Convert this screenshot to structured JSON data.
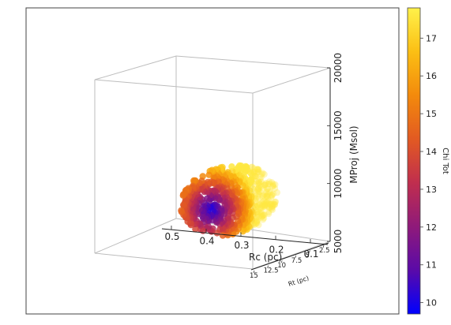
{
  "chart_data": {
    "type": "scatter3d",
    "title": "",
    "axes": {
      "x": {
        "label": "Rc (pc)",
        "ticks": [
          "0.5",
          "0.4",
          "0.3",
          "0.2",
          "0.1"
        ],
        "range": [
          0.05,
          0.55
        ]
      },
      "y": {
        "label": "Rt (pc)",
        "ticks": [
          "15",
          "12.5",
          "10",
          "7.5",
          "5",
          "2.5"
        ],
        "range": [
          2.5,
          15
        ]
      },
      "z": {
        "label": "MProj (Msol)",
        "ticks": [
          "5000",
          "10000",
          "15000",
          "20000"
        ],
        "range": [
          5000,
          20000
        ]
      }
    },
    "colorbar": {
      "label": "Chi Tot",
      "range": [
        9.7,
        17.8
      ],
      "ticks": [
        "10",
        "11",
        "12",
        "13",
        "14",
        "15",
        "16",
        "17"
      ],
      "colormap": [
        "#0000ff",
        "#5a0aa8",
        "#8f1a7a",
        "#c02e4e",
        "#e25a22",
        "#f38a0c",
        "#fbbf14",
        "#fff14a"
      ]
    },
    "points_summary": {
      "min_chi_location": {
        "rc": 0.4,
        "rt": 10,
        "mproj": 8000,
        "chi": 9.8
      },
      "Rc_extent": [
        0.3,
        0.46
      ],
      "Rt_extent": [
        6,
        14
      ],
      "MProj_extent": [
        7500,
        11500
      ]
    },
    "grid": false,
    "legend": "colorbar-right"
  }
}
